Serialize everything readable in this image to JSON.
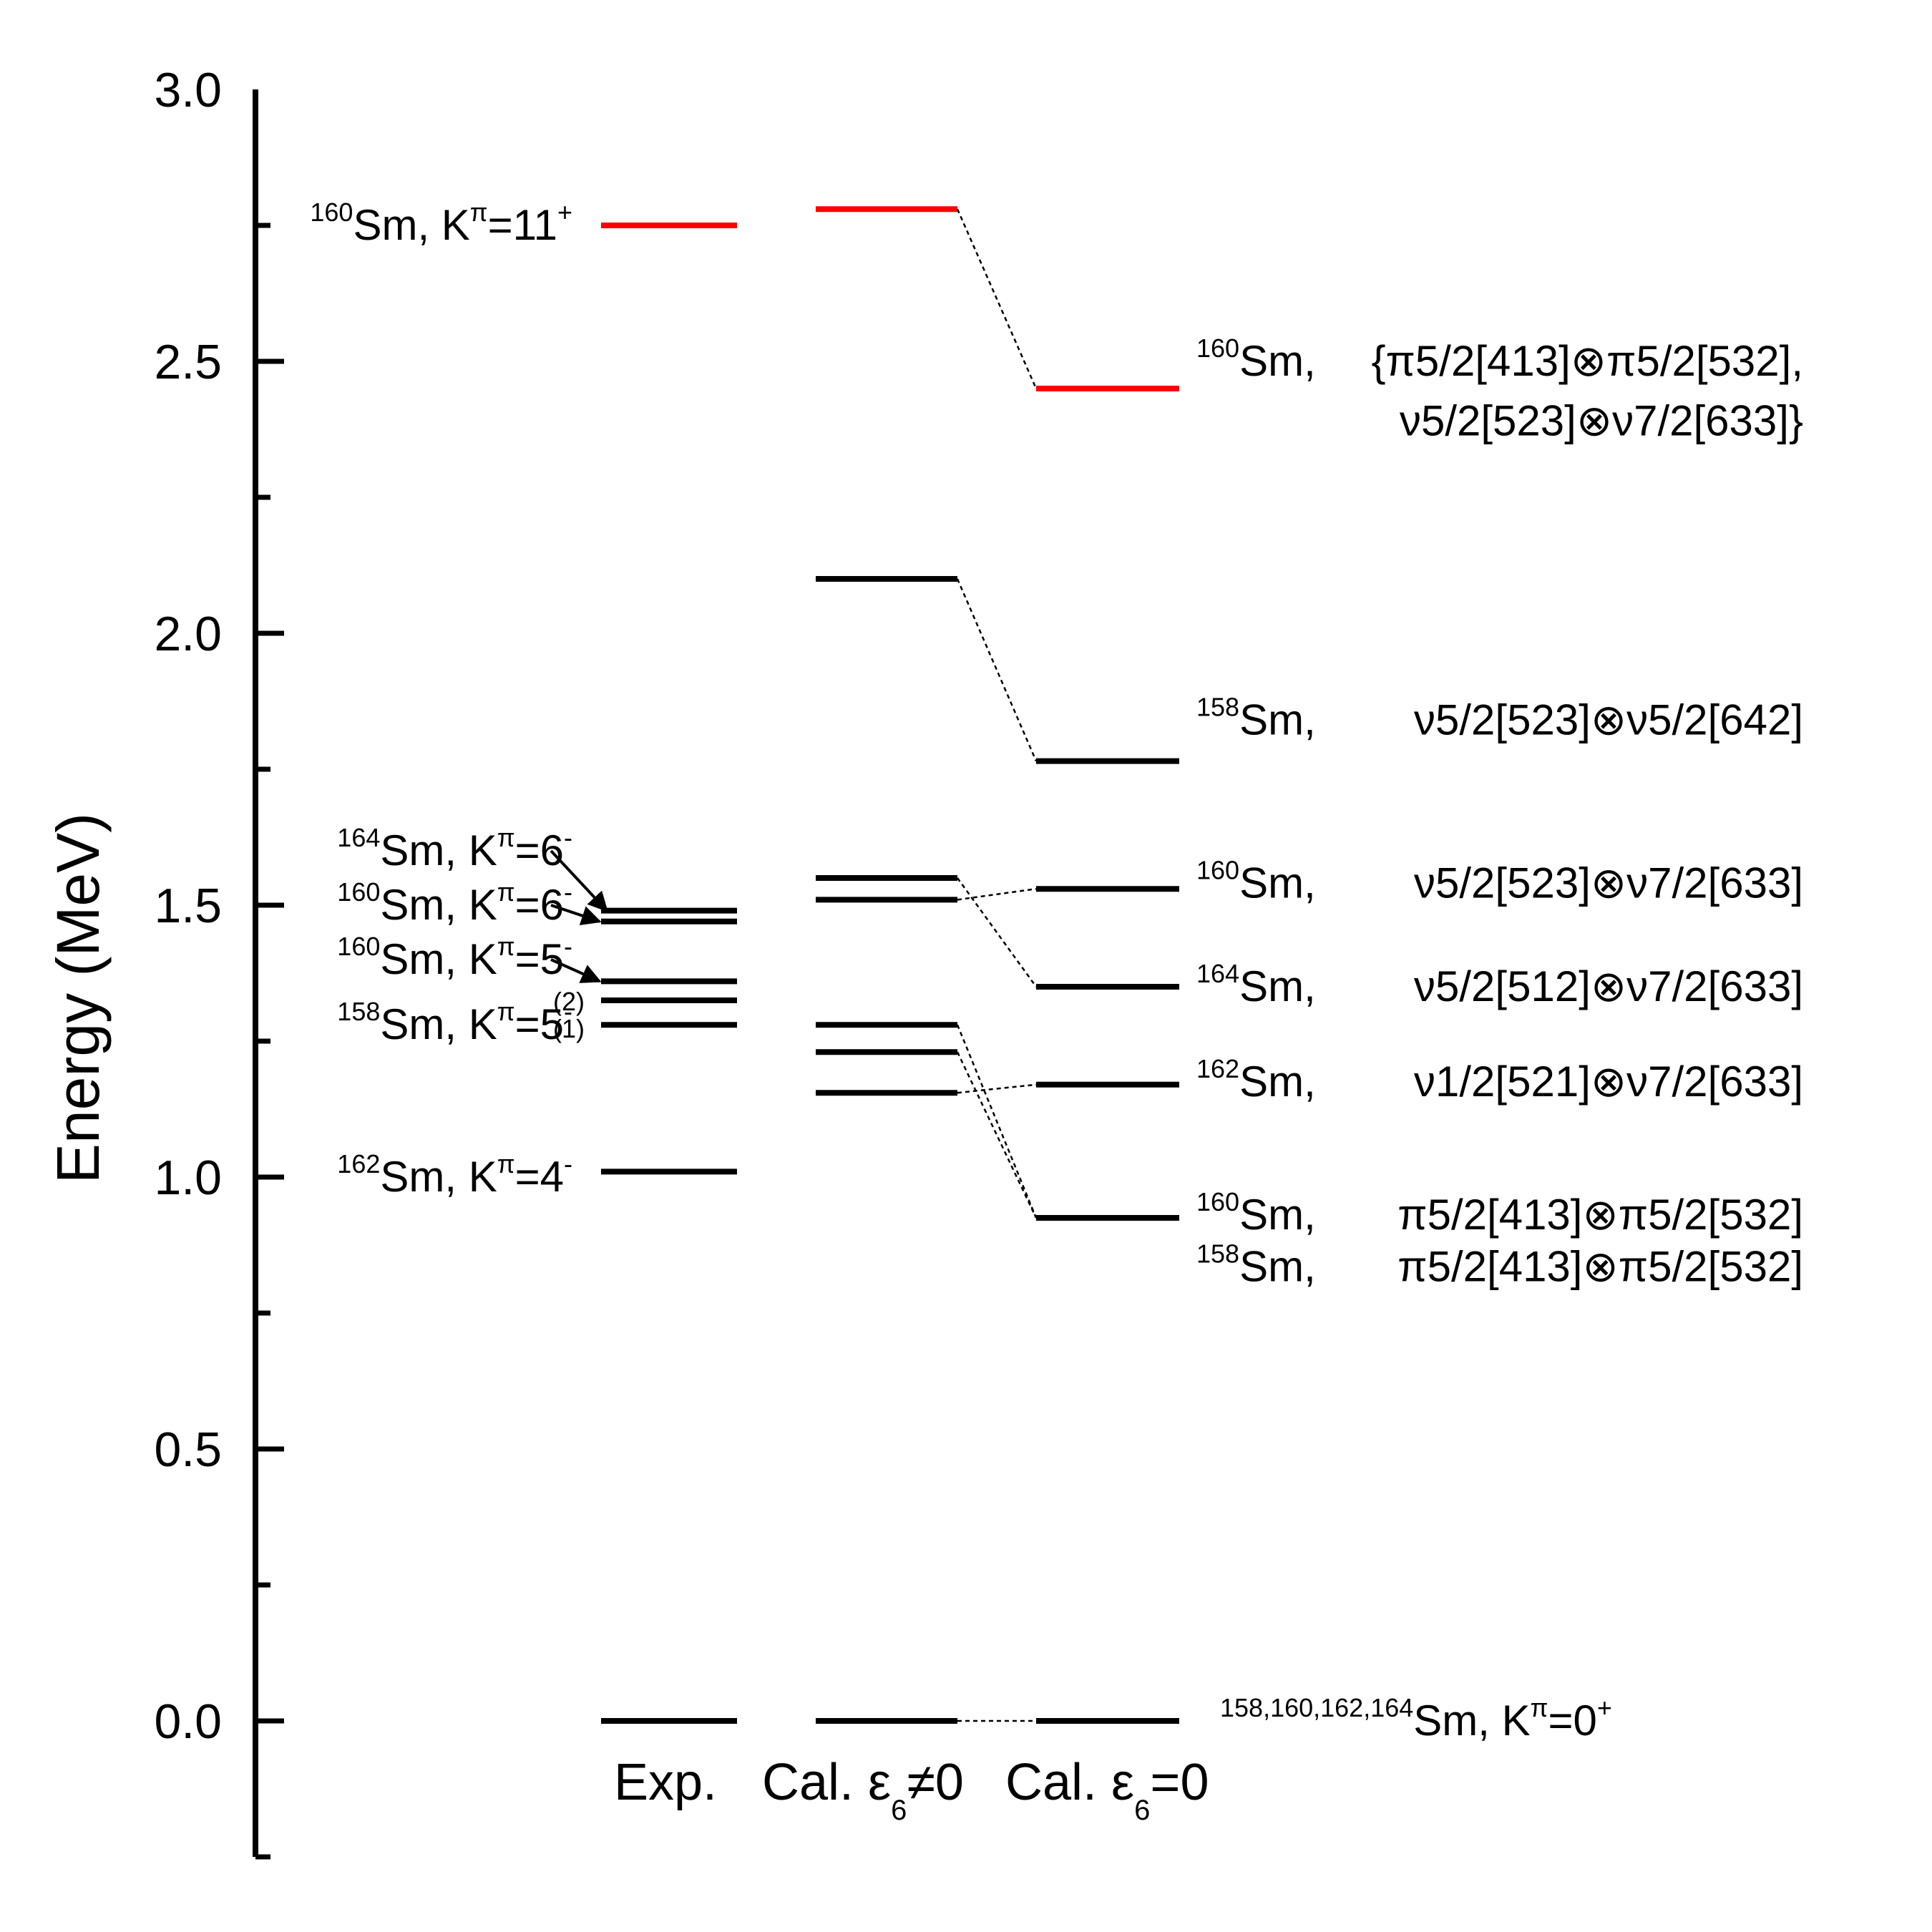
{
  "chart_data": {
    "type": "level-scheme",
    "ylabel": "Energy (MeV)",
    "ylim": [
      -0.25,
      3.0
    ],
    "yticks": [
      "0.0",
      "0.5",
      "1.0",
      "1.5",
      "2.0",
      "2.5",
      "3.0"
    ],
    "tick_values": [
      0.0,
      0.5,
      1.0,
      1.5,
      2.0,
      2.5,
      3.0
    ],
    "columns": [
      {
        "id": "exp",
        "label": "Exp."
      },
      {
        "id": "cal1",
        "label": "Cal. ε₆≠0"
      },
      {
        "id": "cal0",
        "label": "Cal. ε₆=0"
      }
    ],
    "colors": {
      "highlight": "#ff0000",
      "level": "#000000"
    },
    "levels": {
      "exp": [
        {
          "energy": 0.0,
          "color": "#000000"
        },
        {
          "energy": 1.01,
          "color": "#000000"
        },
        {
          "energy": 1.28,
          "color": "#000000"
        },
        {
          "energy": 1.325,
          "color": "#000000"
        },
        {
          "energy": 1.36,
          "color": "#000000"
        },
        {
          "energy": 1.47,
          "color": "#000000"
        },
        {
          "energy": 1.49,
          "color": "#000000"
        },
        {
          "energy": 2.75,
          "color": "#ff0000"
        }
      ],
      "cal1": [
        {
          "energy": 0.0,
          "color": "#000000"
        },
        {
          "energy": 1.155,
          "color": "#000000"
        },
        {
          "energy": 1.23,
          "color": "#000000"
        },
        {
          "energy": 1.28,
          "color": "#000000"
        },
        {
          "energy": 1.51,
          "color": "#000000"
        },
        {
          "energy": 1.55,
          "color": "#000000"
        },
        {
          "energy": 2.1,
          "color": "#000000"
        },
        {
          "energy": 2.78,
          "color": "#ff0000"
        }
      ],
      "cal0": [
        {
          "energy": 0.0,
          "color": "#000000"
        },
        {
          "energy": 0.925,
          "color": "#000000"
        },
        {
          "energy": 1.17,
          "color": "#000000"
        },
        {
          "energy": 1.35,
          "color": "#000000"
        },
        {
          "energy": 1.53,
          "color": "#000000"
        },
        {
          "energy": 1.765,
          "color": "#000000"
        },
        {
          "energy": 2.45,
          "color": "#ff0000"
        }
      ]
    },
    "connectors": [
      {
        "from": 2.78,
        "to": 2.45
      },
      {
        "from": 2.1,
        "to": 1.765
      },
      {
        "from": 1.51,
        "to": 1.53
      },
      {
        "from": 1.55,
        "to": 1.35
      },
      {
        "from": 1.28,
        "to": 0.925
      },
      {
        "from": 1.23,
        "to": 0.925
      },
      {
        "from": 1.155,
        "to": 1.17
      },
      {
        "from": 0.0,
        "to": 0.0
      }
    ],
    "exp_labels": [
      {
        "pre": "160",
        "text": "Sm, K",
        "kpi": "π",
        "val": "=11",
        "parity": "+",
        "energy": 2.75
      },
      {
        "pre": "164",
        "text": "Sm, K",
        "kpi": "π",
        "val": "=6",
        "parity": "-",
        "energy": 1.6
      },
      {
        "pre": "160",
        "text": "Sm, K",
        "kpi": "π",
        "val": "=6",
        "parity": "-",
        "energy": 1.5
      },
      {
        "pre": "160",
        "text": "Sm, K",
        "kpi": "π",
        "val": "=5",
        "parity": "-",
        "energy": 1.4
      },
      {
        "pre": "158",
        "text": "Sm, K",
        "kpi": "π",
        "val": "=5",
        "parity": "-",
        "energy": 1.28
      },
      {
        "pre": "162",
        "text": "Sm, K",
        "kpi": "π",
        "val": "=4",
        "parity": "-",
        "energy": 1.0
      }
    ],
    "exp_index_labels": [
      "(2)",
      "(1)"
    ],
    "cal_labels": [
      {
        "pre": "160",
        "sm": "Sm,",
        "config": "{π5/2[413]⊗π5/2[532],",
        "energy": 2.5
      },
      {
        "pre": "",
        "sm": "",
        "config": "ν5/2[523]⊗ν7/2[633]}",
        "energy": 2.39
      },
      {
        "pre": "158",
        "sm": "Sm,",
        "config": "ν5/2[523]⊗ν5/2[642]",
        "energy": 1.84
      },
      {
        "pre": "160",
        "sm": "Sm,",
        "config": "ν5/2[523]⊗ν7/2[633]",
        "energy": 1.54
      },
      {
        "pre": "164",
        "sm": "Sm,",
        "config": "ν5/2[512]⊗ν7/2[633]",
        "energy": 1.35
      },
      {
        "pre": "162",
        "sm": "Sm,",
        "config": "ν1/2[521]⊗ν7/2[633]",
        "energy": 1.175
      },
      {
        "pre": "160",
        "sm": "Sm,",
        "config": "π5/2[413]⊗π5/2[532]",
        "energy": 0.93
      },
      {
        "pre": "158",
        "sm": "Sm,",
        "config": "π5/2[413]⊗π5/2[532]",
        "energy": 0.835
      }
    ],
    "ground_label": {
      "pre": "158,160,162,164",
      "text": "Sm, K",
      "kpi": "π",
      "val": "=0",
      "parity": "+"
    }
  }
}
